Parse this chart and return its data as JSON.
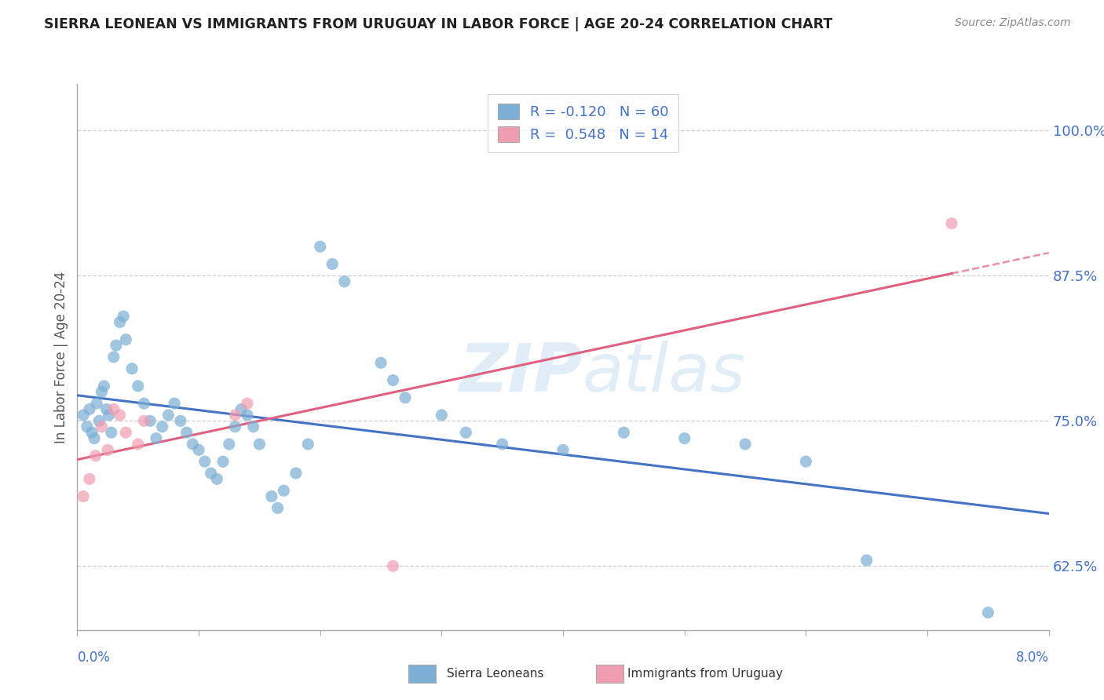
{
  "title": "SIERRA LEONEAN VS IMMIGRANTS FROM URUGUAY IN LABOR FORCE | AGE 20-24 CORRELATION CHART",
  "source": "Source: ZipAtlas.com",
  "ylabel": "In Labor Force | Age 20-24",
  "ylabel_ticks": [
    62.5,
    75.0,
    87.5,
    100.0
  ],
  "ylabel_tick_labels": [
    "62.5%",
    "75.0%",
    "87.5%",
    "100.0%"
  ],
  "xlim": [
    0.0,
    8.0
  ],
  "ylim": [
    57.0,
    104.0
  ],
  "blue_color": "#7bafd4",
  "pink_color": "#f09db0",
  "blue_trend_color": "#4472c4",
  "pink_trend_color": "#e06080",
  "blue_dot_alpha": 0.7,
  "pink_dot_alpha": 0.7,
  "sierra_leonean_points": [
    [
      0.05,
      75.5
    ],
    [
      0.08,
      74.5
    ],
    [
      0.1,
      76.0
    ],
    [
      0.12,
      74.0
    ],
    [
      0.14,
      73.5
    ],
    [
      0.16,
      76.5
    ],
    [
      0.18,
      75.0
    ],
    [
      0.2,
      77.5
    ],
    [
      0.22,
      78.0
    ],
    [
      0.24,
      76.0
    ],
    [
      0.26,
      75.5
    ],
    [
      0.28,
      74.0
    ],
    [
      0.3,
      80.5
    ],
    [
      0.32,
      81.5
    ],
    [
      0.35,
      83.5
    ],
    [
      0.38,
      84.0
    ],
    [
      0.4,
      82.0
    ],
    [
      0.45,
      79.5
    ],
    [
      0.5,
      78.0
    ],
    [
      0.55,
      76.5
    ],
    [
      0.6,
      75.0
    ],
    [
      0.65,
      73.5
    ],
    [
      0.7,
      74.5
    ],
    [
      0.75,
      75.5
    ],
    [
      0.8,
      76.5
    ],
    [
      0.85,
      75.0
    ],
    [
      0.9,
      74.0
    ],
    [
      0.95,
      73.0
    ],
    [
      1.0,
      72.5
    ],
    [
      1.05,
      71.5
    ],
    [
      1.1,
      70.5
    ],
    [
      1.15,
      70.0
    ],
    [
      1.2,
      71.5
    ],
    [
      1.25,
      73.0
    ],
    [
      1.3,
      74.5
    ],
    [
      1.35,
      76.0
    ],
    [
      1.4,
      75.5
    ],
    [
      1.45,
      74.5
    ],
    [
      1.5,
      73.0
    ],
    [
      1.6,
      68.5
    ],
    [
      1.65,
      67.5
    ],
    [
      1.7,
      69.0
    ],
    [
      1.8,
      70.5
    ],
    [
      1.9,
      73.0
    ],
    [
      2.0,
      90.0
    ],
    [
      2.1,
      88.5
    ],
    [
      2.2,
      87.0
    ],
    [
      2.5,
      80.0
    ],
    [
      2.6,
      78.5
    ],
    [
      2.7,
      77.0
    ],
    [
      3.0,
      75.5
    ],
    [
      3.2,
      74.0
    ],
    [
      3.5,
      73.0
    ],
    [
      4.0,
      72.5
    ],
    [
      4.5,
      74.0
    ],
    [
      5.0,
      73.5
    ],
    [
      5.5,
      73.0
    ],
    [
      6.0,
      71.5
    ],
    [
      6.5,
      63.0
    ],
    [
      7.5,
      58.5
    ]
  ],
  "uruguay_points": [
    [
      0.05,
      68.5
    ],
    [
      0.1,
      70.0
    ],
    [
      0.15,
      72.0
    ],
    [
      0.2,
      74.5
    ],
    [
      0.25,
      72.5
    ],
    [
      0.3,
      76.0
    ],
    [
      0.35,
      75.5
    ],
    [
      0.4,
      74.0
    ],
    [
      0.5,
      73.0
    ],
    [
      0.55,
      75.0
    ],
    [
      1.3,
      75.5
    ],
    [
      1.4,
      76.5
    ],
    [
      2.6,
      62.5
    ],
    [
      7.2,
      92.0
    ]
  ],
  "legend_r1": "R = -0.120",
  "legend_n1": "N = 60",
  "legend_r2": "R =  0.548",
  "legend_n2": "N = 14"
}
